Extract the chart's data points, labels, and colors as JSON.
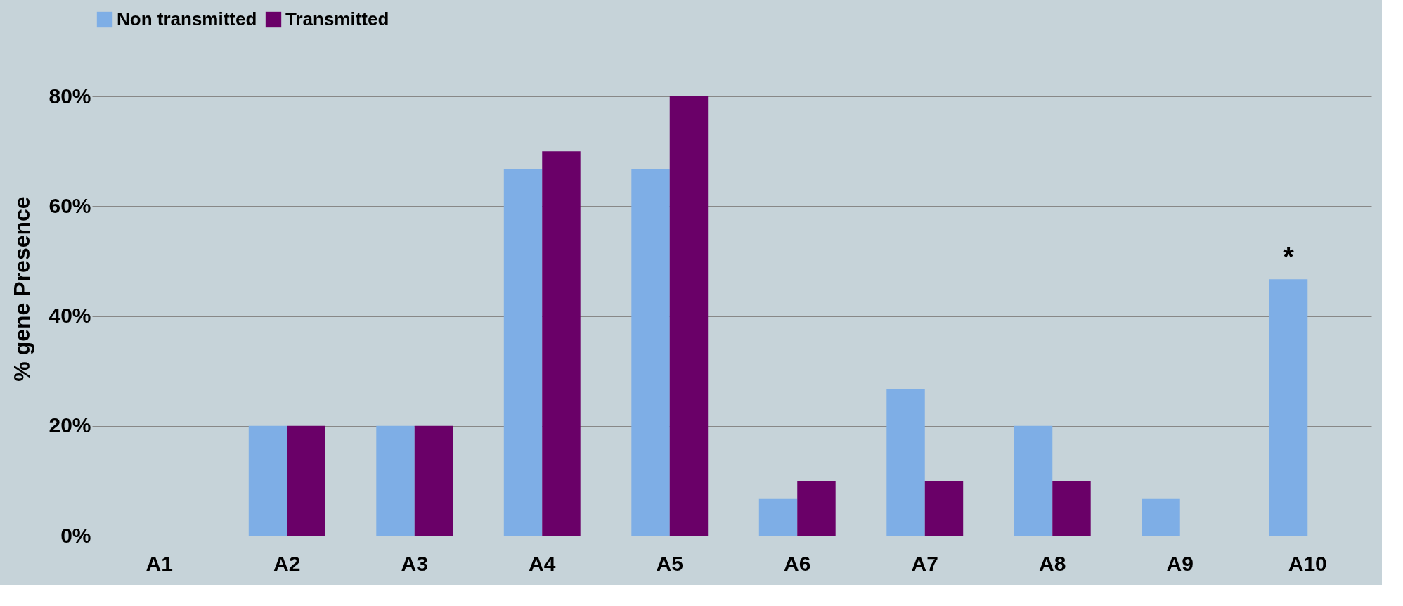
{
  "chart_data": {
    "type": "bar",
    "ylabel": "% gene Presence",
    "categories": [
      "A1",
      "A2",
      "A3",
      "A4",
      "A5",
      "A6",
      "A7",
      "A8",
      "A9",
      "A10"
    ],
    "series": [
      {
        "name": "Non transmitted",
        "color": "#7eaee6",
        "values": [
          0,
          20,
          20,
          66.7,
          66.7,
          6.7,
          26.7,
          20,
          6.7,
          46.7
        ]
      },
      {
        "name": "Transmitted",
        "color": "#6a0068",
        "values": [
          0,
          20,
          20,
          70,
          80,
          10,
          10,
          10,
          0,
          0
        ]
      }
    ],
    "ylim": [
      0,
      90
    ],
    "yticks": [
      {
        "value": 0,
        "label": "0%"
      },
      {
        "value": 20,
        "label": "20%"
      },
      {
        "value": 40,
        "label": "40%"
      },
      {
        "value": 60,
        "label": "60%"
      },
      {
        "value": 80,
        "label": "80%"
      }
    ],
    "grid": "y",
    "legend": "top",
    "annotations": [
      {
        "text": "*",
        "x": "A10",
        "y": 46.7
      }
    ]
  }
}
